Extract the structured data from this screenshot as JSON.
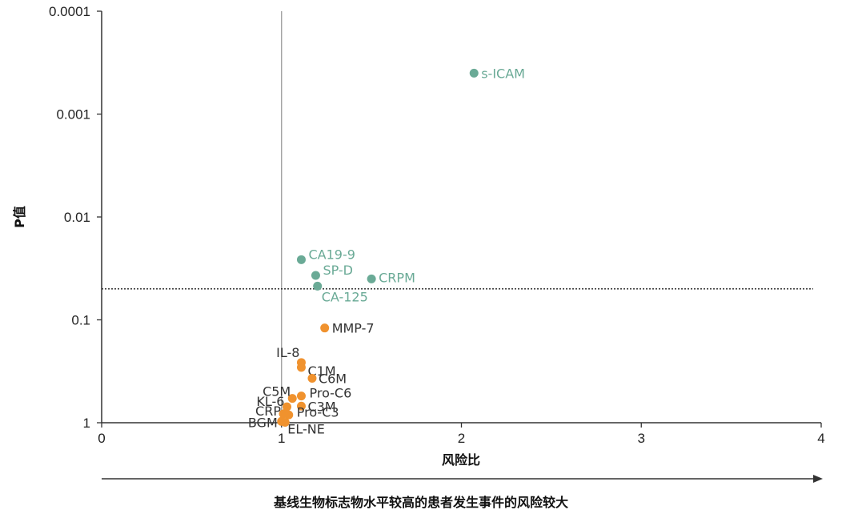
{
  "chart_data": {
    "type": "scatter",
    "title": "",
    "xlabel": "风险比",
    "ylabel": "P值",
    "footer": "基线生物标志物水平较高的患者发生事件的风险较大",
    "xlim": [
      0,
      4
    ],
    "ylim": [
      1,
      0.0001
    ],
    "y_scale": "log",
    "y_inverted": true,
    "x_ticks": [
      "0",
      "1",
      "2",
      "3",
      "4"
    ],
    "y_ticks": [
      "0.0001",
      "0.001",
      "0.01",
      "0.1",
      "1"
    ],
    "reference_lines": {
      "vertical_x": 1,
      "horizontal_p": 0.05,
      "horizontal_style": "dotted"
    },
    "colors": {
      "significant": "#6aaa96",
      "not_significant": "#f0922e"
    },
    "series": [
      {
        "points": [
          {
            "label": "s-ICAM",
            "x": 2.07,
            "y": 0.0004
          },
          {
            "label": "CA19-9",
            "x": 1.11,
            "y": 0.026
          },
          {
            "label": "SP-D",
            "x": 1.19,
            "y": 0.037
          },
          {
            "label": "CRPM",
            "x": 1.5,
            "y": 0.04
          },
          {
            "label": "CA-125",
            "x": 1.2,
            "y": 0.047
          }
        ]
      },
      {
        "points": [
          {
            "label": "MMP-7",
            "x": 1.24,
            "y": 0.12
          },
          {
            "label": "IL-8",
            "x": 1.11,
            "y": 0.26
          },
          {
            "label": "C1M",
            "x": 1.11,
            "y": 0.29
          },
          {
            "label": "C6M",
            "x": 1.17,
            "y": 0.37
          },
          {
            "label": "Pro-C6",
            "x": 1.11,
            "y": 0.55
          },
          {
            "label": "C5M",
            "x": 1.06,
            "y": 0.58
          },
          {
            "label": "C3M",
            "x": 1.11,
            "y": 0.69
          },
          {
            "label": "KL-6",
            "x": 1.03,
            "y": 0.7
          },
          {
            "label": "Pro-C3",
            "x": 1.04,
            "y": 0.84
          },
          {
            "label": "CRP",
            "x": 1.01,
            "y": 0.82
          },
          {
            "label": "BGM",
            "x": 1.0,
            "y": 0.97
          },
          {
            "label": "EL-NE",
            "x": 1.02,
            "y": 0.99
          }
        ]
      }
    ]
  }
}
